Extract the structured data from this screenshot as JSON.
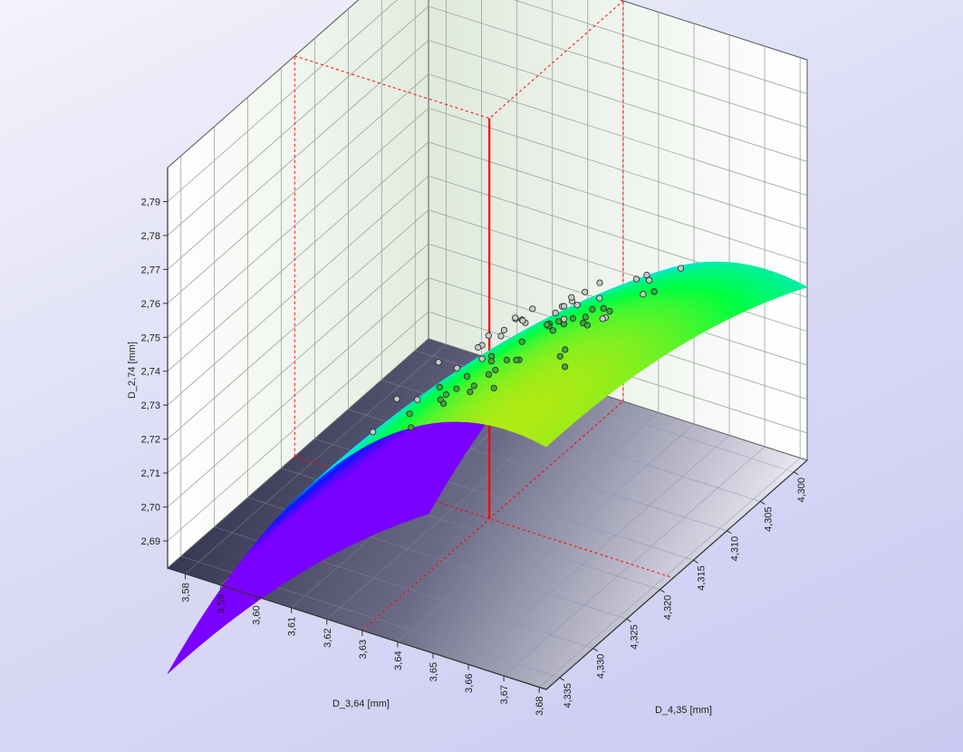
{
  "chart_data": {
    "type": "surface3d",
    "title": "",
    "x_axis": {
      "label": "D_3,64 [mm]",
      "ticks": [
        "3,58",
        "3,59",
        "3,60",
        "3,61",
        "3,62",
        "3,63",
        "3,64",
        "3,65",
        "3,66",
        "3,67",
        "3,68"
      ],
      "range": [
        3.575,
        3.682
      ]
    },
    "y_axis": {
      "label": "D_4,35 [mm]",
      "ticks": [
        "4,300",
        "4,305",
        "4,310",
        "4,315",
        "4,320",
        "4,325",
        "4,330",
        "4,335"
      ],
      "range": [
        4.298,
        4.337
      ]
    },
    "z_axis": {
      "label": "D_2,74 [mm]",
      "ticks": [
        "2,69",
        "2,70",
        "2,71",
        "2,72",
        "2,73",
        "2,74",
        "2,75",
        "2,76",
        "2,77",
        "2,78",
        "2,79"
      ],
      "range": [
        2.682,
        2.8
      ]
    },
    "crosshair": {
      "x": 3.63,
      "y": 4.318
    },
    "colormap": [
      "#7a00ff",
      "#0018ff",
      "#00e0ff",
      "#00ff40",
      "#ffe000",
      "#ff0000"
    ],
    "points_note": "",
    "colors": {
      "above": "#c8c8c8",
      "below": "#3fa83f",
      "crosshair": "#ff0000",
      "wall": "#eef3ea",
      "floor": "#2a2a4a"
    }
  }
}
